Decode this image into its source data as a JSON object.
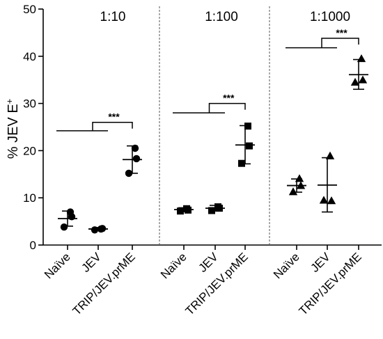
{
  "chart_data": {
    "type": "scatter",
    "ylabel_main": "% JEV E",
    "ylabel_sup": "+",
    "xlabel": "",
    "ylim": [
      0,
      50
    ],
    "yticks": [
      0,
      10,
      20,
      30,
      40,
      50
    ],
    "grid": false,
    "legend": "none",
    "significance_label": "***",
    "categories": [
      "Naïve",
      "JEV",
      "TRIP/JEV.prME"
    ],
    "panels": [
      {
        "title": "1:10",
        "marker": "circle",
        "groups": [
          {
            "category": "Naïve",
            "values": [
              7.0,
              3.8,
              6.0
            ],
            "mean": 5.6,
            "error": [
              4.0,
              7.2
            ]
          },
          {
            "category": "JEV",
            "values": [
              3.4,
              3.2,
              3.5
            ],
            "mean": 3.4,
            "error": [
              3.1,
              3.7
            ]
          },
          {
            "category": "TRIP/JEV.prME",
            "values": [
              20.5,
              15.2,
              18.3
            ],
            "mean": 18.1,
            "error": [
              15.2,
              21.0
            ]
          }
        ],
        "bracket_level": 24.2,
        "star_level": 26.0
      },
      {
        "title": "1:100",
        "marker": "square",
        "groups": [
          {
            "category": "Naïve",
            "values": [
              7.7,
              7.2,
              7.4
            ],
            "mean": 7.5,
            "error": [
              7.1,
              7.9
            ]
          },
          {
            "category": "JEV",
            "values": [
              8.1,
              7.3,
              7.8
            ],
            "mean": 7.8,
            "error": [
              7.2,
              8.4
            ]
          },
          {
            "category": "TRIP/JEV.prME",
            "values": [
              25.2,
              17.3,
              21.0
            ],
            "mean": 21.2,
            "error": [
              17.2,
              25.3
            ]
          }
        ],
        "bracket_level": 28.0,
        "star_level": 30.0
      },
      {
        "title": "1:1000",
        "marker": "triangle",
        "groups": [
          {
            "category": "Naïve",
            "values": [
              14.1,
              11.3,
              12.6
            ],
            "mean": 12.6,
            "error": [
              11.2,
              14.0
            ]
          },
          {
            "category": "JEV",
            "values": [
              18.9,
              9.5,
              9.4
            ],
            "mean": 12.7,
            "error": [
              7.0,
              18.5
            ]
          },
          {
            "category": "TRIP/JEV.prME",
            "values": [
              39.5,
              34.5,
              35.0
            ],
            "mean": 36.1,
            "error": [
              33.0,
              39.3
            ]
          }
        ],
        "bracket_level": 41.8,
        "star_level": 43.8
      }
    ]
  }
}
